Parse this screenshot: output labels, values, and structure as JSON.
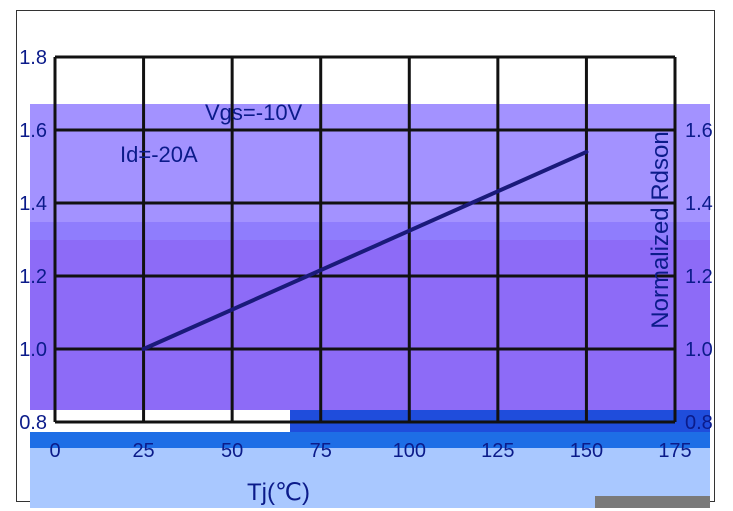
{
  "chart_data": {
    "type": "line",
    "title": "",
    "xlabel": "Tj(℃)",
    "ylabel": "Normalized Rdson",
    "x_ticks": [
      "0",
      "25",
      "50",
      "75",
      "100",
      "125",
      "150",
      "175"
    ],
    "y_ticks": [
      "1.8",
      "1.6",
      "1.4",
      "1.2",
      "1.0",
      "0.8"
    ],
    "y_ticks_right": [
      "1.6",
      "1.4",
      "1.2",
      "1.0",
      "0.8"
    ],
    "xlim": [
      0,
      175
    ],
    "ylim": [
      0.8,
      1.8
    ],
    "grid": true,
    "annotations": [
      "Vgs=-10V",
      "Id=-20A"
    ],
    "series": [
      {
        "x": [
          25,
          150
        ],
        "y": [
          1.0,
          1.54
        ]
      }
    ]
  },
  "colors": {
    "line": "#1a1a7a",
    "grid": "#111111",
    "text": "#0b1b8a"
  }
}
